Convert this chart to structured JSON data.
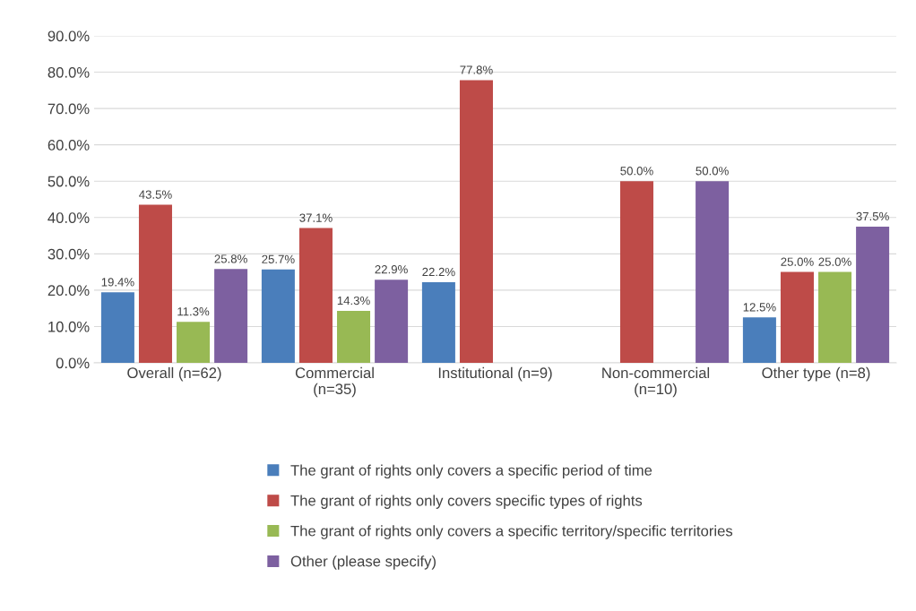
{
  "chart_data": {
    "type": "bar",
    "categories": [
      "Overall (n=62)",
      "Commercial\n(n=35)",
      "Institutional (n=9)",
      "Non-commercial\n(n=10)",
      "Other type (n=8)"
    ],
    "series": [
      {
        "name": "The grant of rights only covers a specific period of time",
        "color": "#4a7ebb",
        "values": [
          19.4,
          25.7,
          22.2,
          null,
          12.5
        ],
        "value_labels": [
          "19.4%",
          "25.7%",
          "22.2%",
          null,
          "12.5%"
        ]
      },
      {
        "name": "The grant of rights only covers specific types of rights",
        "color": "#be4b48",
        "values": [
          43.5,
          37.1,
          77.8,
          50.0,
          25.0
        ],
        "value_labels": [
          "43.5%",
          "37.1%",
          "77.8%",
          "50.0%",
          "25.0%"
        ]
      },
      {
        "name": "The grant of rights only covers a specific territory/specific territories",
        "color": "#98b954",
        "values": [
          11.3,
          14.3,
          null,
          null,
          25.0
        ],
        "value_labels": [
          "11.3%",
          "14.3%",
          null,
          null,
          "25.0%"
        ]
      },
      {
        "name": "Other (please specify)",
        "color": "#7d60a0",
        "values": [
          25.8,
          22.9,
          null,
          50.0,
          37.5
        ],
        "value_labels": [
          "25.8%",
          "22.9%",
          null,
          "50.0%",
          "37.5%"
        ]
      }
    ],
    "ylim": [
      0,
      90
    ],
    "yticks": [
      {
        "value": 0,
        "label": "0.0%"
      },
      {
        "value": 10,
        "label": "10.0%"
      },
      {
        "value": 20,
        "label": "20.0%"
      },
      {
        "value": 30,
        "label": "30.0%"
      },
      {
        "value": 40,
        "label": "40.0%"
      },
      {
        "value": 50,
        "label": "50.0%"
      },
      {
        "value": 60,
        "label": "60.0%"
      },
      {
        "value": 70,
        "label": "70.0%"
      },
      {
        "value": 80,
        "label": "80.0%"
      },
      {
        "value": 90,
        "label": "90.0%"
      }
    ],
    "grid": "y",
    "legend": "bottom"
  }
}
